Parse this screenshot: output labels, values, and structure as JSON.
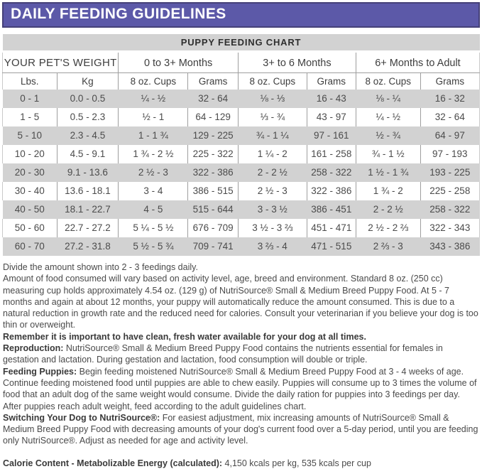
{
  "title_bar": {
    "title": "DAILY FEEDING GUIDELINES",
    "background_color": "#5c59a8",
    "border_color": "#454178",
    "text_color": "#ffffff"
  },
  "table": {
    "title": "PUPPY FEEDING CHART",
    "weight_header": "YOUR PET'S WEIGHT",
    "age_groups": [
      "0 to 3+ Months",
      "3+ to 6 Months",
      "6+ Months to Adult"
    ],
    "columns": [
      "Lbs.",
      "Kg",
      "8 oz. Cups",
      "Grams",
      "8 oz. Cups",
      "Grams",
      "8 oz. Cups",
      "Grams"
    ],
    "rows": [
      [
        "0 - 1",
        "0.0 - 0.5",
        "¼ - ½",
        "32 - 64",
        "⅛ - ⅓",
        "16 - 43",
        "⅛ - ¼",
        "16 - 32"
      ],
      [
        "1 - 5",
        "0.5 - 2.3",
        "½ - 1",
        "64 - 129",
        "⅓ - ¾",
        "43 - 97",
        "¼ - ½",
        "32 - 64"
      ],
      [
        "5 - 10",
        "2.3 - 4.5",
        "1 - 1 ¾",
        "129 - 225",
        "¾ - 1 ¼",
        "97 - 161",
        "½ - ¾",
        "64 - 97"
      ],
      [
        "10 - 20",
        "4.5 - 9.1",
        "1 ¾ - 2 ½",
        "225 - 322",
        "1 ¼ - 2",
        "161 - 258",
        "¾ - 1 ½",
        "97 - 193"
      ],
      [
        "20 - 30",
        "9.1 - 13.6",
        "2 ½ - 3",
        "322 - 386",
        "2 - 2 ½",
        "258 - 322",
        "1 ½ - 1 ¾",
        "193 - 225"
      ],
      [
        "30 - 40",
        "13.6 - 18.1",
        "3 - 4",
        "386 - 515",
        "2 ½ - 3",
        "322 - 386",
        "1 ¾ - 2",
        "225 - 258"
      ],
      [
        "40 - 50",
        "18.1 - 22.7",
        "4 - 5",
        "515 - 644",
        "3 - 3 ½",
        "386 - 451",
        "2 - 2 ½",
        "258 - 322"
      ],
      [
        "50 - 60",
        "22.7 - 27.2",
        "5 ¼ - 5 ½",
        "676 - 709",
        "3 ½ - 3 ⅔",
        "451 - 471",
        "2 ½ - 2 ⅔",
        "322 - 343"
      ],
      [
        "60 - 70",
        "27.2 - 31.8",
        "5 ½ - 5 ¾",
        "709 - 741",
        "3 ⅔ - 4",
        "471 - 515",
        "2 ⅔ - 3",
        "343 - 386"
      ]
    ],
    "shaded_row_color": "#d2d2d2",
    "grid_line_color": "#9e9e9e"
  },
  "notes": [
    {
      "text": "Divide the amount shown into 2 - 3 feedings daily."
    },
    {
      "text": "Amount of food consumed will vary based on activity level, age, breed and environment. Standard 8 oz. (250 cc) measuring cup holds approximately 4.54 oz. (129 g) of NutriSource® Small & Medium Breed Puppy Food. At 5 - 7 months and again at about 12 months, your puppy will automatically reduce the amount consumed. This is due to a natural reduction in growth rate and the reduced need for calories. Consult your veterinarian if you believe your dog is too thin or overweight."
    },
    {
      "bold": "Remember it is important to have clean, fresh water available for your dog at all times."
    },
    {
      "bold": "Reproduction:",
      "text": " NutriSource® Small & Medium Breed Puppy Food contains the nutrients essential for females in gestation and lactation. During gestation and lactation, food consumption will double or triple."
    },
    {
      "bold": "Feeding Puppies:",
      "text": " Begin feeding moistened NutriSource® Small & Medium Breed Puppy Food at 3 - 4 weeks of age. Continue feeding moistened food until puppies are able to chew easily. Puppies will consume up to 3 times the volume of food that an adult dog of the same weight would consume. Divide the daily ration for puppies into 3 feedings per day. After puppies reach adult weight, feed according to the adult guidelines chart."
    },
    {
      "bold": "Switching Your Dog to NutriSource®:",
      "text": " For easiest adjustment, mix increasing amounts of NutriSource® Small & Medium Breed Puppy Food with decreasing amounts of your dog's current food over a 5-day period, until you are feeding only NutriSource®. Adjust as needed for age and activity level."
    },
    {
      "bold": "Calorie Content - Metabolizable Energy (calculated):",
      "text": " 4,150 kcals per kg, 535 kcals per cup"
    }
  ]
}
